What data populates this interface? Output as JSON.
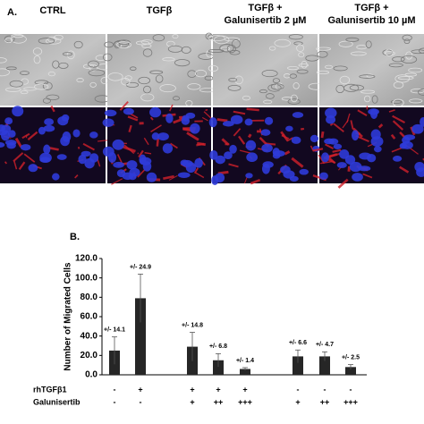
{
  "panel_a": {
    "label": "A.",
    "columns": [
      [
        "CTRL"
      ],
      [
        "TGFβ"
      ],
      [
        "TGFβ +",
        "Galunisertib 2 µM"
      ],
      [
        "TGFβ +",
        "Galunisertib 10 µM"
      ]
    ]
  },
  "chart_data": {
    "type": "bar",
    "panel_label": "B.",
    "ylabel": "Number of Migrated Cells",
    "ylim": [
      0,
      120
    ],
    "yticks": [
      {
        "value": 0,
        "label": "0.0"
      },
      {
        "value": 20,
        "label": "20.0"
      },
      {
        "value": 40,
        "label": "40.0"
      },
      {
        "value": 60,
        "label": "60.0"
      },
      {
        "value": 80,
        "label": "80.0"
      },
      {
        "value": 100,
        "label": "100.0"
      },
      {
        "value": 120,
        "label": "120.0"
      }
    ],
    "values": [
      25,
      79,
      29,
      15,
      6,
      19,
      19,
      8
    ],
    "errors": [
      14.1,
      24.9,
      14.8,
      6.8,
      1.4,
      6.6,
      4.7,
      2.5
    ],
    "error_labels": [
      "+/- 14.1",
      "+/- 24.9",
      "+/- 14.8",
      "+/- 6.8",
      "+/- 1.4",
      "+/- 6.6",
      "+/- 4.7",
      "+/- 2.5"
    ],
    "color": "#262626",
    "table": [
      {
        "label": "rhTGFβ1",
        "cells": [
          "-",
          "+",
          "+",
          "+",
          "+",
          "-",
          "-",
          "-"
        ]
      },
      {
        "label": "Galunisertib",
        "cells": [
          "-",
          "-",
          "+",
          "++",
          "+++",
          "+",
          "++",
          "+++"
        ]
      }
    ]
  }
}
